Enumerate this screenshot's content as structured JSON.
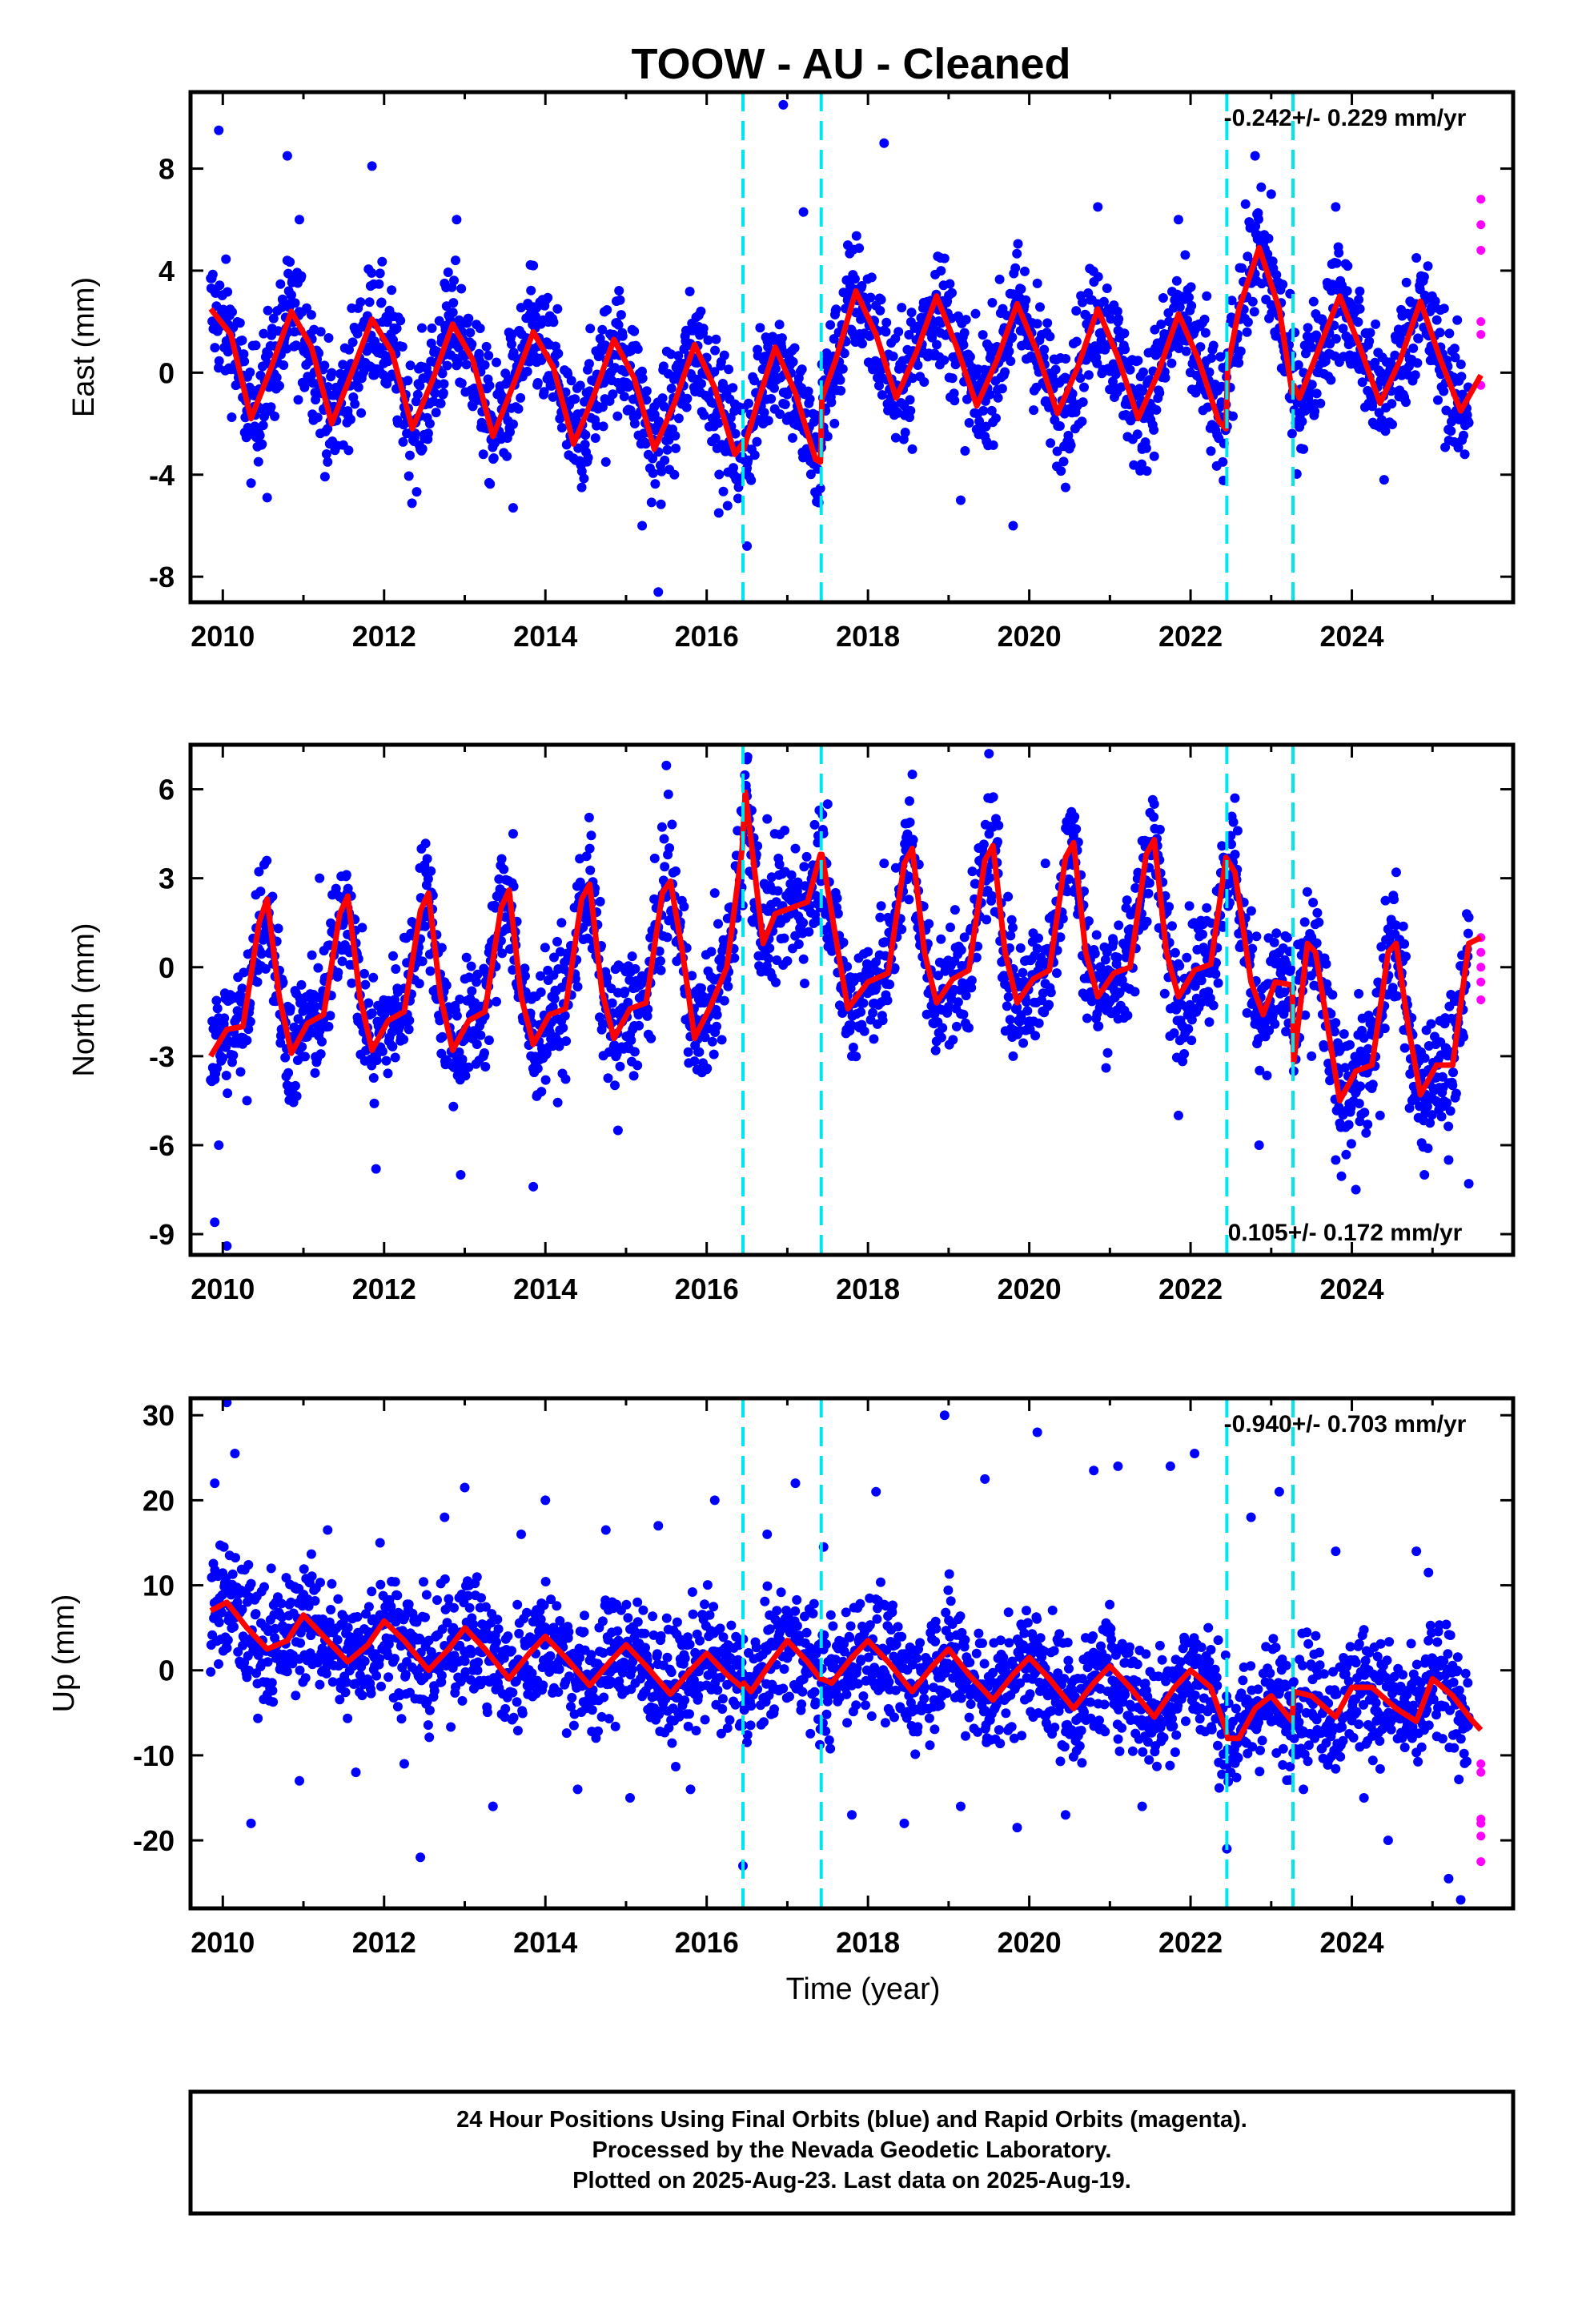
{
  "title": "TOOW  - AU - Cleaned",
  "xlabel": "Time (year)",
  "caption": {
    "line1": "24 Hour Positions Using Final Orbits (blue) and Rapid Orbits (magenta).",
    "line2": "Processed by the Nevada Geodetic Laboratory.",
    "line3": "Plotted on 2025-Aug-23. Last data on 2025-Aug-19."
  },
  "colors": {
    "final_orbits": "#0000ff",
    "rapid_orbits": "#ff00ff",
    "model": "#ff0000",
    "events": "#00e5ee"
  },
  "chart_data": [
    {
      "type": "scatter",
      "ylabel": "East (mm)",
      "rate_text": "-0.242+/- 0.229 mm/yr",
      "rate_position": "top-right",
      "xlim": [
        2009.6,
        2026.0
      ],
      "ylim": [
        -9,
        11
      ],
      "x_ticks": [
        "2010",
        "2012",
        "2014",
        "2016",
        "2018",
        "2020",
        "2022",
        "2024"
      ],
      "y_ticks": [
        "-8",
        "-4",
        "0",
        "4",
        "8"
      ],
      "event_lines": [
        2016.45,
        2017.42,
        2022.45,
        2023.27
      ],
      "model": {
        "x": [
          2009.85,
          2010.1,
          2010.35,
          2010.6,
          2010.85,
          2011.1,
          2011.35,
          2011.6,
          2011.85,
          2012.1,
          2012.35,
          2012.6,
          2012.85,
          2013.1,
          2013.35,
          2013.6,
          2013.85,
          2014.1,
          2014.35,
          2014.6,
          2014.85,
          2015.1,
          2015.35,
          2015.6,
          2015.85,
          2016.1,
          2016.35,
          2016.44,
          2016.46,
          2016.6,
          2016.85,
          2017.1,
          2017.35,
          2017.41,
          2017.43,
          2017.6,
          2017.85,
          2018.1,
          2018.35,
          2018.6,
          2018.85,
          2019.1,
          2019.35,
          2019.6,
          2019.85,
          2020.1,
          2020.35,
          2020.6,
          2020.85,
          2021.1,
          2021.35,
          2021.6,
          2021.85,
          2022.1,
          2022.35,
          2022.44,
          2022.46,
          2022.6,
          2022.85,
          2023.1,
          2023.26,
          2023.28,
          2023.35,
          2023.6,
          2023.85,
          2024.1,
          2024.35,
          2024.6,
          2024.85,
          2025.1,
          2025.35,
          2025.6
        ],
        "y": [
          2.5,
          1.5,
          -1.8,
          0.2,
          2.4,
          1.0,
          -2.0,
          0.0,
          2.1,
          0.8,
          -2.2,
          -0.3,
          1.9,
          0.5,
          -2.5,
          -0.5,
          1.6,
          0.2,
          -2.8,
          -0.9,
          1.3,
          -0.2,
          -3.0,
          -1.2,
          1.1,
          -0.6,
          -3.2,
          -2.8,
          -3.0,
          -1.5,
          1.0,
          -0.8,
          -3.4,
          -3.5,
          -1.0,
          0.5,
          3.2,
          1.5,
          -1.0,
          0.8,
          3.0,
          1.0,
          -1.3,
          0.5,
          2.7,
          0.8,
          -1.6,
          0.2,
          2.5,
          0.6,
          -1.8,
          0.0,
          2.3,
          0.5,
          -1.9,
          -2.2,
          0.2,
          2.5,
          4.9,
          2.5,
          -0.8,
          -0.5,
          -1.0,
          1.0,
          3.0,
          1.0,
          -1.2,
          0.5,
          2.8,
          0.5,
          -1.5,
          -0.1
        ]
      },
      "final_points": {
        "x": [
          2009.95,
          2010.22,
          2010.55,
          2010.8,
          2010.95,
          2011.3,
          2011.55,
          2011.85,
          2012.1,
          2012.45,
          2012.75,
          2012.9,
          2013.25,
          2013.6,
          2013.85,
          2014.15,
          2014.45,
          2014.75,
          2014.95,
          2015.2,
          2015.4,
          2015.6,
          2015.9,
          2016.15,
          2016.5,
          2016.7,
          2016.95,
          2017.2,
          2017.5,
          2017.75,
          2017.9,
          2018.2,
          2018.55,
          2018.9,
          2019.15,
          2019.45,
          2019.8,
          2020.1,
          2020.45,
          2020.85,
          2021.1,
          2021.4,
          2021.85,
          2022.2,
          2022.4,
          2022.8,
          2023.0,
          2023.4,
          2023.8,
          2024.1,
          2024.4,
          2024.8,
          2025.1,
          2025.4
        ],
        "y": [
          9.5,
          0.5,
          -4.9,
          8.5,
          6.0,
          -3.5,
          -1.5,
          8.1,
          1.0,
          -3.0,
          3.5,
          6.0,
          -1.2,
          -5.3,
          4.2,
          2.5,
          -4.5,
          -3.5,
          1.0,
          -6.0,
          -8.6,
          -4.0,
          1.8,
          -5.5,
          -6.8,
          -2.0,
          10.5,
          6.3,
          -2.5,
          5.0,
          3.0,
          9.0,
          -3.0,
          4.5,
          -5.0,
          -2.5,
          -6.0,
          3.5,
          -4.5,
          6.5,
          2.0,
          -3.0,
          6.0,
          3.0,
          -3.5,
          8.5,
          7.0,
          -3.0,
          6.5,
          2.5,
          -4.2,
          4.5,
          1.0,
          -3.2
        ]
      },
      "rapid_points": {
        "x": [
          2025.6,
          2025.6,
          2025.6,
          2025.6,
          2025.6,
          2025.6
        ],
        "y": [
          6.8,
          5.8,
          4.8,
          2.0,
          1.5,
          -0.5
        ]
      }
    },
    {
      "type": "scatter",
      "ylabel": "North (mm)",
      "rate_text": "0.105+/- 0.172 mm/yr",
      "rate_position": "bottom-right",
      "xlim": [
        2009.6,
        2026.0
      ],
      "ylim": [
        -9.7,
        7.5
      ],
      "x_ticks": [
        "2010",
        "2012",
        "2014",
        "2016",
        "2018",
        "2020",
        "2022",
        "2024"
      ],
      "y_ticks": [
        "-9",
        "-6",
        "-3",
        "0",
        "3",
        "6"
      ],
      "event_lines": [
        2016.45,
        2017.42,
        2022.45,
        2023.27
      ],
      "model": {
        "x": [
          2009.85,
          2010.05,
          2010.25,
          2010.45,
          2010.55,
          2010.7,
          2010.85,
          2011.05,
          2011.25,
          2011.45,
          2011.55,
          2011.7,
          2011.85,
          2012.05,
          2012.25,
          2012.45,
          2012.55,
          2012.7,
          2012.85,
          2013.05,
          2013.25,
          2013.45,
          2013.55,
          2013.7,
          2013.85,
          2014.05,
          2014.25,
          2014.45,
          2014.55,
          2014.7,
          2014.85,
          2015.05,
          2015.25,
          2015.45,
          2015.55,
          2015.7,
          2015.85,
          2016.05,
          2016.25,
          2016.44,
          2016.48,
          2016.7,
          2016.85,
          2017.05,
          2017.25,
          2017.41,
          2017.43,
          2017.6,
          2017.75,
          2018.0,
          2018.25,
          2018.45,
          2018.55,
          2018.7,
          2018.85,
          2019.05,
          2019.25,
          2019.45,
          2019.55,
          2019.7,
          2019.85,
          2020.05,
          2020.25,
          2020.45,
          2020.55,
          2020.7,
          2020.85,
          2021.05,
          2021.25,
          2021.45,
          2021.55,
          2021.7,
          2021.85,
          2022.05,
          2022.25,
          2022.44,
          2022.55,
          2022.75,
          2022.9,
          2023.05,
          2023.26,
          2023.28,
          2023.45,
          2023.55,
          2023.7,
          2023.85,
          2024.05,
          2024.25,
          2024.45,
          2024.55,
          2024.7,
          2024.85,
          2025.05,
          2025.25,
          2025.45,
          2025.6
        ],
        "y": [
          -3.0,
          -2.1,
          -2.0,
          1.5,
          2.3,
          -1.0,
          -2.9,
          -1.9,
          -1.6,
          1.8,
          2.4,
          -1.0,
          -2.8,
          -1.8,
          -1.5,
          1.9,
          2.5,
          -1.0,
          -2.8,
          -1.8,
          -1.5,
          2.0,
          2.6,
          -1.0,
          -2.6,
          -1.6,
          -1.4,
          2.3,
          2.8,
          -0.8,
          -2.4,
          -1.4,
          -1.2,
          2.5,
          2.9,
          0.5,
          -2.4,
          -1.3,
          0.0,
          4.0,
          5.9,
          0.8,
          1.8,
          2.0,
          2.2,
          3.8,
          3.8,
          1.0,
          -1.4,
          -0.5,
          -0.2,
          3.5,
          4.0,
          0.5,
          -1.2,
          -0.4,
          -0.1,
          3.6,
          4.1,
          0.5,
          -1.2,
          -0.4,
          -0.1,
          3.7,
          4.2,
          0.5,
          -1.0,
          -0.2,
          0.0,
          3.8,
          4.3,
          0.5,
          -1.0,
          -0.1,
          0.1,
          3.7,
          3.2,
          -0.5,
          -1.6,
          -0.5,
          -0.6,
          -3.2,
          0.8,
          0.5,
          -2.0,
          -4.5,
          -3.5,
          -3.3,
          0.5,
          0.8,
          -2.0,
          -4.3,
          -3.3,
          -3.3,
          0.8,
          1.0
        ]
      },
      "final_points": {
        "x": [
          2009.9,
          2009.95,
          2010.05,
          2010.3,
          2010.6,
          2010.9,
          2011.2,
          2011.55,
          2011.9,
          2012.25,
          2012.6,
          2012.95,
          2013.3,
          2013.6,
          2013.85,
          2014.2,
          2014.55,
          2014.9,
          2015.3,
          2015.5,
          2015.8,
          2016.1,
          2016.5,
          2016.75,
          2017.1,
          2017.5,
          2017.8,
          2018.2,
          2018.55,
          2018.85,
          2019.1,
          2019.5,
          2019.8,
          2020.2,
          2020.55,
          2020.85,
          2021.2,
          2021.55,
          2021.85,
          2022.2,
          2022.55,
          2022.85,
          2023.1,
          2023.5,
          2023.8,
          2024.05,
          2024.35,
          2024.55,
          2024.9,
          2025.2,
          2025.45
        ],
        "y": [
          -8.6,
          -6.0,
          -9.4,
          -4.5,
          1.0,
          -4.0,
          3.0,
          2.0,
          -6.8,
          1.0,
          1.5,
          -7.0,
          0.5,
          4.5,
          -7.4,
          1.5,
          4.0,
          -5.5,
          1.0,
          6.8,
          -2.0,
          2.5,
          7.0,
          5.0,
          4.0,
          5.5,
          -3.0,
          3.5,
          6.5,
          -2.5,
          -2.0,
          7.2,
          -3.0,
          3.5,
          5.0,
          -2.0,
          2.0,
          5.5,
          -5.0,
          2.0,
          5.7,
          -6.0,
          0.5,
          -3.0,
          -6.5,
          -7.5,
          -5.0,
          3.2,
          -7.0,
          -6.5,
          -7.3
        ]
      },
      "rapid_points": {
        "x": [
          2025.6,
          2025.6,
          2025.6,
          2025.6,
          2025.6
        ],
        "y": [
          1.0,
          0.5,
          0.0,
          -0.5,
          -1.1
        ]
      }
    },
    {
      "type": "scatter",
      "ylabel": "Up (mm)",
      "rate_text": "-0.940+/- 0.703 mm/yr",
      "rate_position": "top-right",
      "xlim": [
        2009.6,
        2026.0
      ],
      "ylim": [
        -28,
        32
      ],
      "x_ticks": [
        "2010",
        "2012",
        "2014",
        "2016",
        "2018",
        "2020",
        "2022",
        "2024"
      ],
      "y_ticks": [
        "-20",
        "-10",
        "0",
        "10",
        "20",
        "30"
      ],
      "event_lines": [
        2016.45,
        2017.42,
        2022.45,
        2023.27
      ],
      "model": {
        "x": [
          2009.85,
          2010.05,
          2010.3,
          2010.55,
          2010.8,
          2011.0,
          2011.25,
          2011.55,
          2011.8,
          2012.0,
          2012.25,
          2012.55,
          2012.8,
          2013.0,
          2013.25,
          2013.55,
          2013.8,
          2014.0,
          2014.25,
          2014.55,
          2014.8,
          2015.0,
          2015.25,
          2015.55,
          2015.8,
          2016.0,
          2016.25,
          2016.44,
          2016.46,
          2016.55,
          2016.8,
          2017.0,
          2017.25,
          2017.41,
          2017.43,
          2017.55,
          2017.8,
          2018.0,
          2018.25,
          2018.55,
          2018.8,
          2019.0,
          2019.25,
          2019.55,
          2019.8,
          2020.0,
          2020.25,
          2020.55,
          2020.8,
          2021.0,
          2021.25,
          2021.55,
          2021.8,
          2022.0,
          2022.25,
          2022.44,
          2022.46,
          2022.6,
          2022.8,
          2023.0,
          2023.26,
          2023.28,
          2023.5,
          2023.8,
          2024.0,
          2024.25,
          2024.55,
          2024.8,
          2025.0,
          2025.25,
          2025.5,
          2025.6
        ],
        "y": [
          7.0,
          8.0,
          5.0,
          2.5,
          3.5,
          6.5,
          4.0,
          1.0,
          3.0,
          5.8,
          3.5,
          0.0,
          2.5,
          5.0,
          2.5,
          -1.0,
          2.0,
          4.0,
          1.5,
          -1.8,
          1.0,
          3.0,
          0.5,
          -2.8,
          0.0,
          2.0,
          -0.5,
          -2.0,
          -1.5,
          -2.5,
          1.0,
          3.5,
          1.0,
          -1.0,
          -1.0,
          -1.5,
          1.5,
          3.5,
          1.0,
          -2.5,
          0.5,
          2.5,
          -0.5,
          -3.5,
          -0.5,
          1.5,
          -1.0,
          -4.5,
          -1.5,
          0.5,
          -2.0,
          -5.5,
          -2.0,
          0.0,
          -2.0,
          -7.0,
          -8.0,
          -8.0,
          -4.5,
          -3.0,
          -6.0,
          -2.5,
          -3.0,
          -5.5,
          -2.0,
          -2.0,
          -4.5,
          -6.0,
          -1.0,
          -3.0,
          -6.0,
          -7.0
        ]
      },
      "final_points": {
        "x": [
          2009.9,
          2010.05,
          2010.15,
          2010.35,
          2010.6,
          2010.95,
          2011.3,
          2011.65,
          2011.95,
          2012.25,
          2012.45,
          2012.75,
          2013.0,
          2013.35,
          2013.7,
          2014.0,
          2014.4,
          2014.75,
          2015.05,
          2015.4,
          2015.8,
          2016.1,
          2016.45,
          2016.75,
          2017.1,
          2017.45,
          2017.8,
          2018.1,
          2018.45,
          2018.95,
          2019.15,
          2019.45,
          2019.85,
          2020.1,
          2020.45,
          2020.8,
          2021.1,
          2021.4,
          2021.75,
          2022.05,
          2022.45,
          2022.75,
          2023.1,
          2023.4,
          2023.8,
          2024.15,
          2024.45,
          2024.8,
          2024.95,
          2025.2,
          2025.35
        ],
        "y": [
          22.0,
          31.5,
          25.5,
          -18.0,
          12.0,
          -13.0,
          16.5,
          -12.0,
          15.0,
          -11.0,
          -22.0,
          18.0,
          21.5,
          -16.0,
          16.0,
          20.0,
          -14.0,
          16.5,
          -15.0,
          17.0,
          -14.0,
          20.0,
          -23.0,
          16.0,
          22.0,
          14.5,
          -17.0,
          21.0,
          -18.0,
          30.0,
          -16.0,
          22.5,
          -18.5,
          28.0,
          -17.0,
          23.5,
          24.0,
          -16.0,
          24.0,
          25.5,
          -21.0,
          18.0,
          21.0,
          -14.0,
          14.0,
          -15.0,
          -20.0,
          14.0,
          11.5,
          -24.5,
          -27.0
        ]
      },
      "rapid_points": {
        "x": [
          2025.6,
          2025.6,
          2025.6,
          2025.6,
          2025.6,
          2025.6
        ],
        "y": [
          -11.0,
          -12.0,
          -17.5,
          -18.0,
          -19.5,
          -22.5
        ]
      }
    }
  ]
}
